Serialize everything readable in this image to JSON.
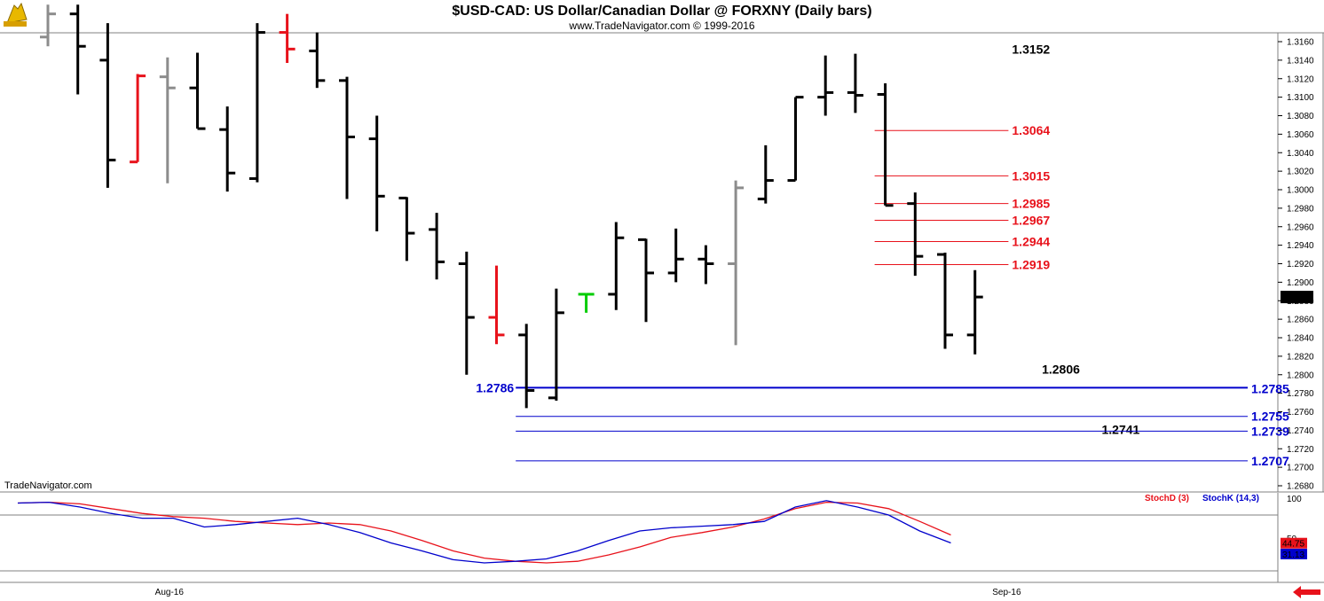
{
  "header": {
    "title": "$USD-CAD:  US Dollar/Canadian Dollar @ FORXNY  (Daily bars)",
    "subtitle": "www.TradeNavigator.com © 1999-2016",
    "watermark": "TradeNavigator.com"
  },
  "colors": {
    "up": "#000000",
    "down": "#000000",
    "red": "#e8121b",
    "gray": "#8c8c8c",
    "blue": "#0000cc",
    "green": "#00cc00"
  },
  "chart_data": [
    {
      "type": "ohlc",
      "y_ticks": [
        "1.3160",
        "1.3140",
        "1.3120",
        "1.3100",
        "1.3080",
        "1.3060",
        "1.3040",
        "1.3020",
        "1.3000",
        "1.2980",
        "1.2960",
        "1.2940",
        "1.2920",
        "1.2900",
        "1.2880",
        "1.2860",
        "1.2840",
        "1.2820",
        "1.2800",
        "1.2780",
        "1.2760",
        "1.2740",
        "1.2720",
        "1.2700",
        "1.2680"
      ],
      "x_labels": [
        {
          "label": "Aug-16",
          "bar": 4
        },
        {
          "label": "Sep-16",
          "bar": 32
        }
      ],
      "last_price": "1.2884",
      "bars": [
        {
          "o": 1.3165,
          "h": 1.32,
          "l": 1.3155,
          "c": 1.319,
          "color": "gray"
        },
        {
          "o": 1.319,
          "h": 1.32,
          "l": 1.3103,
          "c": 1.3155,
          "color": "black"
        },
        {
          "o": 1.314,
          "h": 1.318,
          "l": 1.3002,
          "c": 1.3032,
          "color": "black"
        },
        {
          "o": 1.303,
          "h": 1.3125,
          "l": 1.303,
          "c": 1.3123,
          "color": "red"
        },
        {
          "o": 1.3122,
          "h": 1.3143,
          "l": 1.3007,
          "c": 1.311,
          "color": "gray"
        },
        {
          "o": 1.311,
          "h": 1.3148,
          "l": 1.3066,
          "c": 1.3066,
          "color": "black"
        },
        {
          "o": 1.3065,
          "h": 1.309,
          "l": 1.2998,
          "c": 1.3018,
          "color": "black"
        },
        {
          "o": 1.3012,
          "h": 1.318,
          "l": 1.3008,
          "c": 1.317,
          "color": "black"
        },
        {
          "o": 1.317,
          "h": 1.319,
          "l": 1.3137,
          "c": 1.3152,
          "color": "red"
        },
        {
          "o": 1.315,
          "h": 1.317,
          "l": 1.311,
          "c": 1.3118,
          "color": "black"
        },
        {
          "o": 1.3118,
          "h": 1.3122,
          "l": 1.299,
          "c": 1.3057,
          "color": "black"
        },
        {
          "o": 1.3055,
          "h": 1.308,
          "l": 1.2955,
          "c": 1.2993,
          "color": "black"
        },
        {
          "o": 1.2991,
          "h": 1.2992,
          "l": 1.2923,
          "c": 1.2953,
          "color": "black"
        },
        {
          "o": 1.2957,
          "h": 1.2975,
          "l": 1.2903,
          "c": 1.2922,
          "color": "black"
        },
        {
          "o": 1.292,
          "h": 1.2933,
          "l": 1.28,
          "c": 1.2862,
          "color": "black"
        },
        {
          "o": 1.2862,
          "h": 1.2918,
          "l": 1.2833,
          "c": 1.2843,
          "color": "red"
        },
        {
          "o": 1.2843,
          "h": 1.2855,
          "l": 1.2764,
          "c": 1.2783,
          "color": "black"
        },
        {
          "o": 1.2775,
          "h": 1.2893,
          "l": 1.2772,
          "c": 1.2867,
          "color": "black"
        },
        {
          "o": 1.2887,
          "h": 1.2887,
          "l": 1.2867,
          "c": 1.2887,
          "color": "green"
        },
        {
          "o": 1.2887,
          "h": 1.2965,
          "l": 1.287,
          "c": 1.2948,
          "color": "black"
        },
        {
          "o": 1.2946,
          "h": 1.2947,
          "l": 1.2857,
          "c": 1.291,
          "color": "black"
        },
        {
          "o": 1.291,
          "h": 1.2958,
          "l": 1.29,
          "c": 1.2925,
          "color": "black"
        },
        {
          "o": 1.2925,
          "h": 1.294,
          "l": 1.2898,
          "c": 1.292,
          "color": "black"
        },
        {
          "o": 1.292,
          "h": 1.301,
          "l": 1.2832,
          "c": 1.3002,
          "color": "gray"
        },
        {
          "o": 1.299,
          "h": 1.3048,
          "l": 1.2985,
          "c": 1.301,
          "color": "black"
        },
        {
          "o": 1.301,
          "h": 1.31,
          "l": 1.301,
          "c": 1.31,
          "color": "black"
        },
        {
          "o": 1.31,
          "h": 1.3145,
          "l": 1.308,
          "c": 1.3105,
          "color": "black"
        },
        {
          "o": 1.3105,
          "h": 1.3147,
          "l": 1.3083,
          "c": 1.3102,
          "color": "black"
        },
        {
          "o": 1.3103,
          "h": 1.3115,
          "l": 1.2983,
          "c": 1.2983,
          "color": "black"
        },
        {
          "o": 1.2985,
          "h": 1.2997,
          "l": 1.2907,
          "c": 1.2928,
          "color": "black"
        },
        {
          "o": 1.293,
          "h": 1.2932,
          "l": 1.2828,
          "c": 1.2843,
          "color": "black"
        },
        {
          "o": 1.2843,
          "h": 1.2913,
          "l": 1.2822,
          "c": 1.2884,
          "color": "black"
        }
      ],
      "levels": [
        {
          "value": 1.3152,
          "label": "1.3152",
          "color": "black",
          "from_bar": 8,
          "to_bar": 32
        },
        {
          "value": 1.3064,
          "label": "1.3064",
          "color": "red",
          "from_bar": 28,
          "to_bar": 32
        },
        {
          "value": 1.3015,
          "label": "1.3015",
          "color": "red",
          "from_bar": 28,
          "to_bar": 32
        },
        {
          "value": 1.2985,
          "label": "1.2985",
          "color": "red",
          "from_bar": 28,
          "to_bar": 32
        },
        {
          "value": 1.2967,
          "label": "1.2967",
          "color": "red",
          "from_bar": 28,
          "to_bar": 32
        },
        {
          "value": 1.2944,
          "label": "1.2944",
          "color": "red",
          "from_bar": 28,
          "to_bar": 32
        },
        {
          "value": 1.2919,
          "label": "1.2919",
          "color": "red",
          "from_bar": 28,
          "to_bar": 32
        },
        {
          "value": 1.2806,
          "label": "1.2806",
          "color": "black",
          "from_bar": 17,
          "to_bar": 33
        },
        {
          "value": 1.2786,
          "label": "1.2786",
          "color": "blue",
          "from_bar": 16,
          "to_bar": 40,
          "thick": true,
          "left_label": true
        },
        {
          "value": 1.2785,
          "label": "1.2785",
          "color": "blue",
          "from_bar": 16,
          "to_bar": 40,
          "thick": true,
          "no_line": true
        },
        {
          "value": 1.2755,
          "label": "1.2755",
          "color": "blue",
          "from_bar": 16,
          "to_bar": 40
        },
        {
          "value": 1.2741,
          "label": "1.2741",
          "color": "black",
          "from_bar": -2,
          "to_bar": 35
        },
        {
          "value": 1.2739,
          "label": "1.2739",
          "color": "blue",
          "from_bar": 16,
          "to_bar": 40
        },
        {
          "value": 1.2707,
          "label": "1.2707",
          "color": "blue",
          "from_bar": 16,
          "to_bar": 40
        }
      ]
    },
    {
      "type": "line",
      "legend": [
        {
          "name": "StochD (3)",
          "color": "red"
        },
        {
          "name": "StochK (14,3)",
          "color": "blue"
        }
      ],
      "y_ticks": [
        "100",
        "50"
      ],
      "ylim": [
        0,
        100
      ],
      "current": {
        "stochd": "44.75",
        "stochk": "31.13"
      },
      "series": [
        {
          "name": "StochD (3)",
          "color": "red",
          "values": [
            95,
            96,
            94,
            88,
            82,
            78,
            76,
            72,
            70,
            68,
            70,
            68,
            60,
            48,
            35,
            26,
            22,
            20,
            22,
            30,
            40,
            52,
            58,
            65,
            75,
            88,
            96,
            95,
            88,
            72,
            55
          ]
        },
        {
          "name": "StochK (14,3)",
          "color": "blue",
          "values": [
            95,
            96,
            90,
            82,
            76,
            76,
            65,
            68,
            72,
            76,
            68,
            58,
            45,
            35,
            24,
            20,
            22,
            25,
            35,
            48,
            60,
            64,
            66,
            68,
            72,
            90,
            98,
            90,
            80,
            60,
            45
          ]
        }
      ]
    }
  ]
}
